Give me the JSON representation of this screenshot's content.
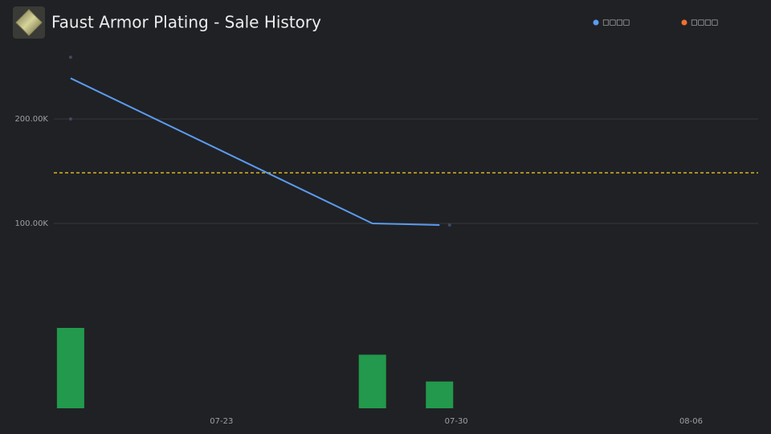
{
  "chart_data": {
    "type": "line",
    "title": "Faust Armor Plating - Sale History",
    "legend": [
      {
        "name": "□□□□",
        "color": "#5b9bf0"
      },
      {
        "name": "□□□□",
        "color": "#f07030"
      }
    ],
    "xlim": [
      18,
      39
    ],
    "xticks": [
      {
        "value": 23,
        "label": "07-23"
      },
      {
        "value": 30,
        "label": "07-30"
      },
      {
        "value": 37,
        "label": "08-06"
      }
    ],
    "ylim": [
      50000,
      270000
    ],
    "yticks": [
      {
        "value": 100000,
        "label": "100.00K"
      },
      {
        "value": 200000,
        "label": "200.00K"
      }
    ],
    "grid": true,
    "series": [
      {
        "color": "#5b9bf0",
        "x": [
          18.5,
          27.5,
          29.5
        ],
        "values": [
          239000,
          100000,
          98500
        ]
      }
    ],
    "sales": {
      "color": "#3d4a66",
      "x": [
        18.5,
        18.5,
        29.8
      ],
      "values": [
        259000,
        200000,
        98500
      ]
    },
    "reference_line": {
      "value": 148500,
      "color": "#d9b22a"
    },
    "volume": {
      "color": "#22994c",
      "x": [
        18.5,
        27.5,
        29.5
      ],
      "values": [
        3,
        2,
        1
      ]
    }
  }
}
